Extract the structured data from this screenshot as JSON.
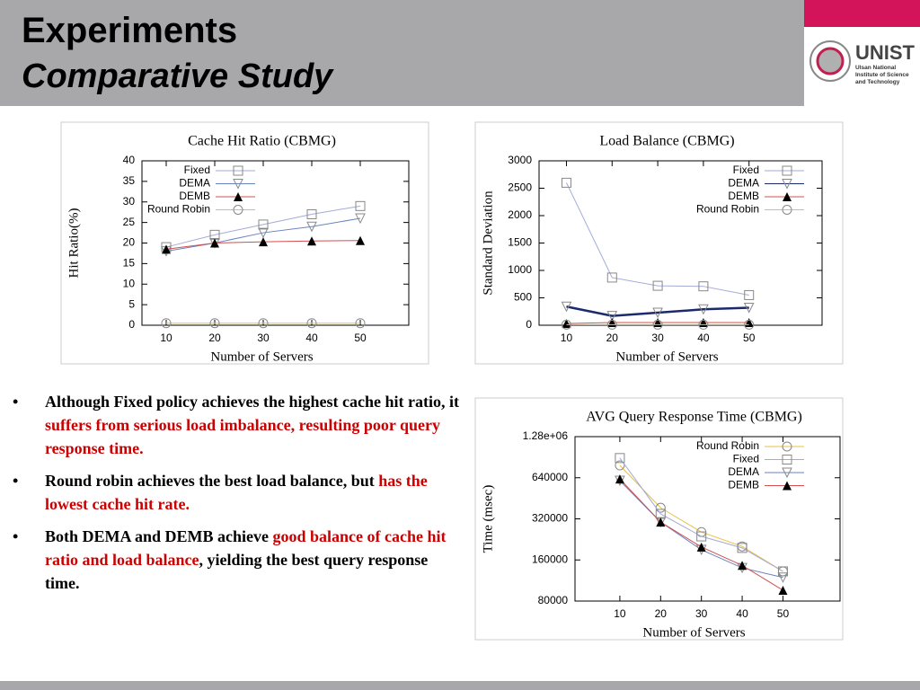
{
  "header": {
    "title": "Experiments",
    "subtitle": "Comparative Study"
  },
  "logo": {
    "name": "UNIST",
    "tagline": "Ulsan National Institute of Science and Technology"
  },
  "bullets": [
    [
      {
        "text": "Although Fixed policy achieves the highest cache hit ratio, it "
      },
      {
        "text": "suffers from serious load imbalance, resulting poor query response time.",
        "color": "#cc0000"
      }
    ],
    [
      {
        "text": "Round robin achieves the best load balance, but "
      },
      {
        "text": "has the lowest cache hit rate.",
        "color": "#cc0000"
      }
    ],
    [
      {
        "text": "Both DEMA and DEMB achieve "
      },
      {
        "text": "good balance of cache hit ratio and load balance",
        "color": "#cc0000"
      },
      {
        "text": ", yielding the best query response time."
      }
    ]
  ],
  "chart_data": [
    {
      "type": "line",
      "title": "Cache Hit Ratio (CBMG)",
      "x_label": "Number of Servers",
      "y_label": "Hit Ratio(%)",
      "x": [
        10,
        20,
        30,
        40,
        50
      ],
      "xlim": [
        5,
        60
      ],
      "xticks": [
        10,
        20,
        30,
        40,
        50
      ],
      "ylim": [
        0,
        40
      ],
      "yticks": [
        0,
        5,
        10,
        15,
        20,
        25,
        30,
        35,
        40
      ],
      "legend": "top-right",
      "series": [
        {
          "name": "Fixed",
          "color": "#a3aad6",
          "marker": "square",
          "values": [
            19,
            22,
            24.5,
            27,
            29
          ]
        },
        {
          "name": "DEMA",
          "color": "#6b82c0",
          "marker": "triangle-down",
          "values": [
            18,
            20,
            22.5,
            24,
            26
          ]
        },
        {
          "name": "DEMB",
          "color": "#d05050",
          "marker": "triangle",
          "values": [
            18.5,
            20,
            20.3,
            20.5,
            20.6
          ]
        },
        {
          "name": "Round Robin",
          "color": "#e8c040",
          "marker": "circle",
          "values": [
            0.5,
            0.5,
            0.5,
            0.5,
            0.5
          ]
        }
      ]
    },
    {
      "type": "line",
      "title": "Load Balance (CBMG)",
      "x_label": "Number of Servers",
      "y_label": "Standard Deviation",
      "x": [
        10,
        20,
        30,
        40,
        50
      ],
      "xlim": [
        4,
        66
      ],
      "xticks": [
        10,
        20,
        30,
        40,
        50
      ],
      "ylim": [
        0,
        3000
      ],
      "yticks": [
        0,
        500,
        1000,
        1500,
        2000,
        2500,
        3000
      ],
      "legend": "top-right",
      "series": [
        {
          "name": "Fixed",
          "color": "#a3aad6",
          "marker": "square",
          "values": [
            2600,
            870,
            720,
            710,
            550
          ]
        },
        {
          "name": "DEMA",
          "color": "#1a2a6c",
          "marker": "triangle-down",
          "values": [
            340,
            170,
            230,
            290,
            320
          ]
        },
        {
          "name": "DEMB",
          "color": "#d05050",
          "marker": "triangle",
          "values": [
            30,
            50,
            50,
            50,
            50
          ]
        },
        {
          "name": "Round Robin",
          "color": "#e8c040",
          "marker": "circle",
          "values": [
            10,
            10,
            10,
            10,
            10
          ]
        }
      ]
    },
    {
      "type": "line",
      "title": "AVG Query Response Time (CBMG)",
      "x_label": "Number of Servers",
      "y_label": "Time (msec)",
      "x": [
        10,
        20,
        30,
        40,
        50
      ],
      "xlim": [
        -1,
        64
      ],
      "xticks": [
        10,
        20,
        30,
        40,
        50
      ],
      "yscale": "log",
      "ylim": [
        80000,
        1280000
      ],
      "yticks": [
        80000,
        160000,
        320000,
        640000,
        {
          "value": 1280000,
          "label": "1.28e+06"
        }
      ],
      "legend": "top-right",
      "series": [
        {
          "name": "Round Robin",
          "color": "#e8c040",
          "marker": "circle",
          "values": [
            788000,
            386000,
            256000,
            201000,
            132000
          ]
        },
        {
          "name": "Fixed",
          "color": "#a3aad6",
          "marker": "square",
          "values": [
            892000,
            348000,
            238000,
            196000,
            132000
          ]
        },
        {
          "name": "DEMA",
          "color": "#6b82c0",
          "marker": "triangle-down",
          "values": [
            609000,
            303000,
            190000,
            140000,
            119000
          ]
        },
        {
          "name": "DEMB",
          "color": "#d05050",
          "marker": "triangle",
          "values": [
            627000,
            303000,
            199000,
            146000,
            96000
          ]
        }
      ]
    }
  ]
}
